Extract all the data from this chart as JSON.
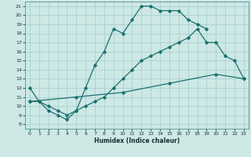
{
  "xlabel": "Humidex (Indice chaleur)",
  "xlim": [
    -0.5,
    23.5
  ],
  "ylim": [
    7.5,
    21.5
  ],
  "xticks": [
    0,
    1,
    2,
    3,
    4,
    5,
    6,
    7,
    8,
    9,
    10,
    11,
    12,
    13,
    14,
    15,
    16,
    17,
    18,
    19,
    20,
    21,
    22,
    23
  ],
  "yticks": [
    8,
    9,
    10,
    11,
    12,
    13,
    14,
    15,
    16,
    17,
    18,
    19,
    20,
    21
  ],
  "bg_color": "#cde8e5",
  "line_color": "#1a7070",
  "grid_color": "#9ecece",
  "line1_x": [
    0,
    1,
    2,
    3,
    4,
    5,
    6,
    7,
    8,
    9,
    10,
    11,
    12,
    13,
    14,
    15,
    16,
    17,
    18,
    19
  ],
  "line1_y": [
    12,
    10.5,
    9.5,
    9.0,
    8.5,
    9.5,
    12.0,
    14.5,
    16.0,
    18.5,
    18.0,
    19.5,
    21.0,
    21.0,
    20.5,
    20.5,
    20.5,
    19.5,
    19.0,
    18.5
  ],
  "line2_x": [
    0,
    1,
    2,
    3,
    4,
    5,
    6,
    7,
    8,
    9,
    10,
    11,
    12,
    13,
    14,
    15,
    16,
    17,
    18,
    19,
    20,
    21,
    22,
    23
  ],
  "line2_y": [
    10.5,
    10.5,
    10.0,
    9.5,
    9.0,
    9.5,
    10.0,
    10.5,
    11.0,
    12.0,
    13.0,
    14.0,
    15.0,
    15.5,
    16.0,
    16.5,
    17.0,
    17.5,
    18.5,
    17.0,
    17.0,
    15.5,
    15.0,
    13.0
  ],
  "line3_x": [
    0,
    5,
    10,
    15,
    20,
    23
  ],
  "line3_y": [
    10.5,
    11.0,
    11.5,
    12.5,
    13.5,
    13.0
  ]
}
